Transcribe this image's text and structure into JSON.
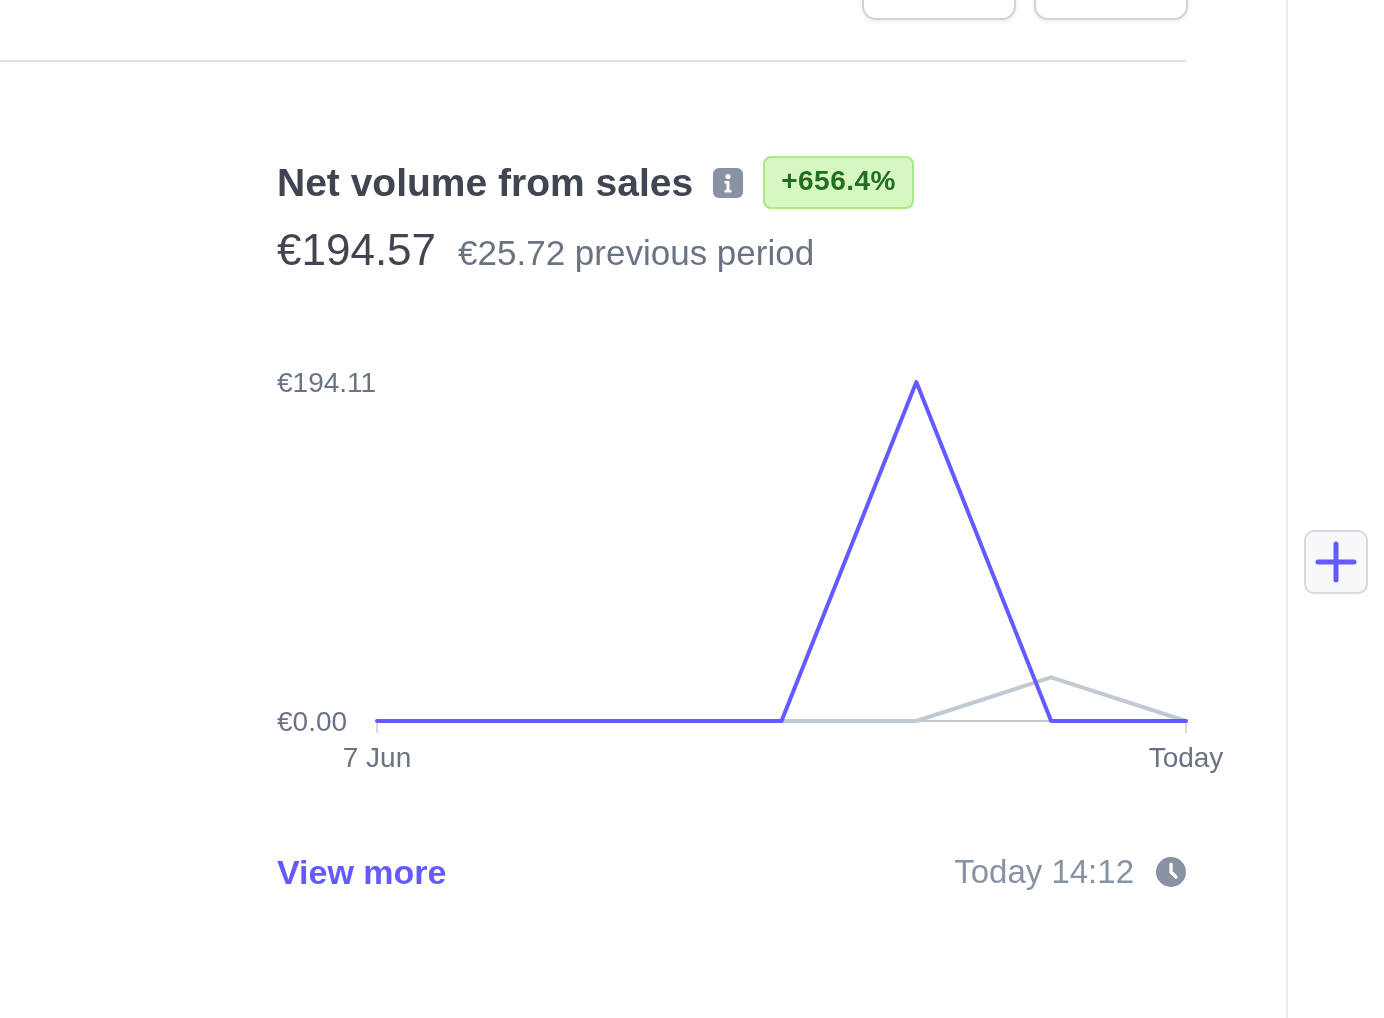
{
  "chart_data": {
    "type": "line",
    "title": "Net volume from sales",
    "annotations": [
      "+656.4%",
      "€194.57",
      "€25.72 previous period",
      "View more",
      "Today 14:12"
    ],
    "categories": [
      "7 Jun",
      null,
      null,
      null,
      null,
      null,
      "Today"
    ],
    "series": [
      {
        "color": "#635bff",
        "values": [
          0,
          0,
          0,
          0,
          194.11,
          0,
          0
        ]
      },
      {
        "color": "#c1c9d2",
        "values": [
          null,
          null,
          null,
          0,
          0,
          25,
          0
        ]
      }
    ],
    "ylim": [
      0,
      194.11
    ],
    "yticks": [
      {
        "value": 0,
        "label": "€0.00"
      },
      {
        "value": 194.11,
        "label": "€194.11"
      }
    ],
    "marker": "none",
    "line_style": "solid"
  }
}
